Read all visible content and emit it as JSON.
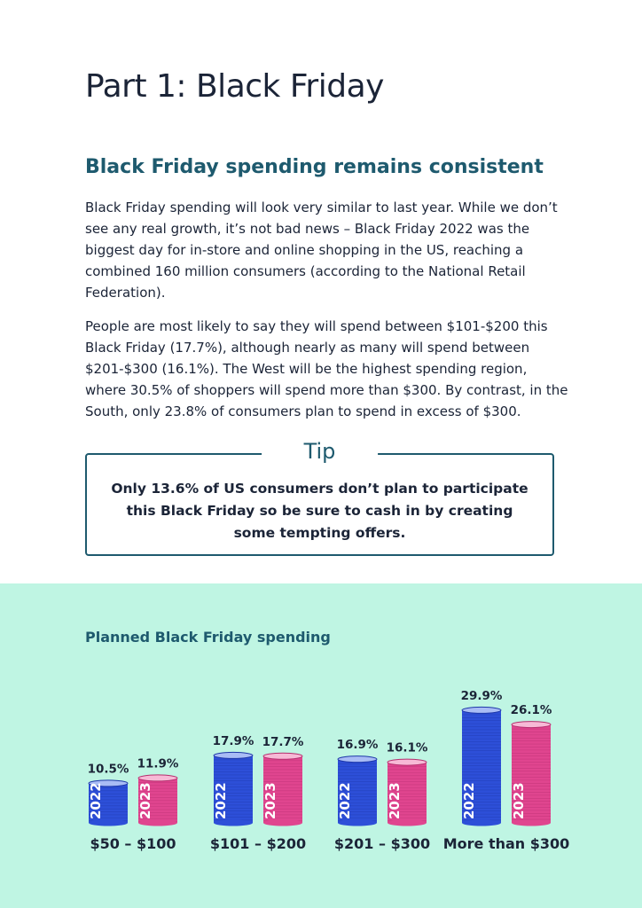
{
  "page": {
    "title": "Part 1: Black Friday",
    "section_heading": "Black Friday spending remains consistent",
    "paragraphs": [
      "Black Friday spending will look very similar to last year. While we don’t see any real growth, it’s not bad news – Black Friday 2022 was the biggest day for in-store and online shopping in the US, reaching a combined 160 million consumers (according to the National Retail Federation).",
      "People are most likely to say they will spend between $101-$200 this Black Friday (17.7%), although nearly as many will spend between $201-$300 (16.1%). The West will be the highest spending region, where 30.5% of shoppers will spend more than $300. By contrast, in the South, only 23.8% of consumers plan to spend in excess of $300."
    ]
  },
  "tip": {
    "label": "Tip",
    "text": "Only 13.6% of US consumers don’t plan to participate this Black Friday so be sure to cash in by creating some tempting offers."
  },
  "colors": {
    "series_2022": "#2d4fd8",
    "series_2023": "#e0458f",
    "panel_bg": "#bff5e3",
    "accent": "#1e5a6e"
  },
  "chart_data": {
    "type": "bar",
    "title": "Planned Black Friday spending",
    "categories": [
      "$50 – $100",
      "$101 – $200",
      "$201 – $300",
      "More than $300"
    ],
    "series": [
      {
        "name": "2022",
        "values": [
          10.5,
          17.9,
          16.9,
          29.9
        ],
        "labels": [
          "10.5%",
          "17.9%",
          "16.9%",
          "29.9%"
        ]
      },
      {
        "name": "2023",
        "values": [
          11.9,
          17.7,
          16.1,
          26.1
        ],
        "labels": [
          "11.9%",
          "17.7%",
          "16.1%",
          "26.1%"
        ]
      }
    ],
    "grid": false,
    "legend": "none"
  }
}
